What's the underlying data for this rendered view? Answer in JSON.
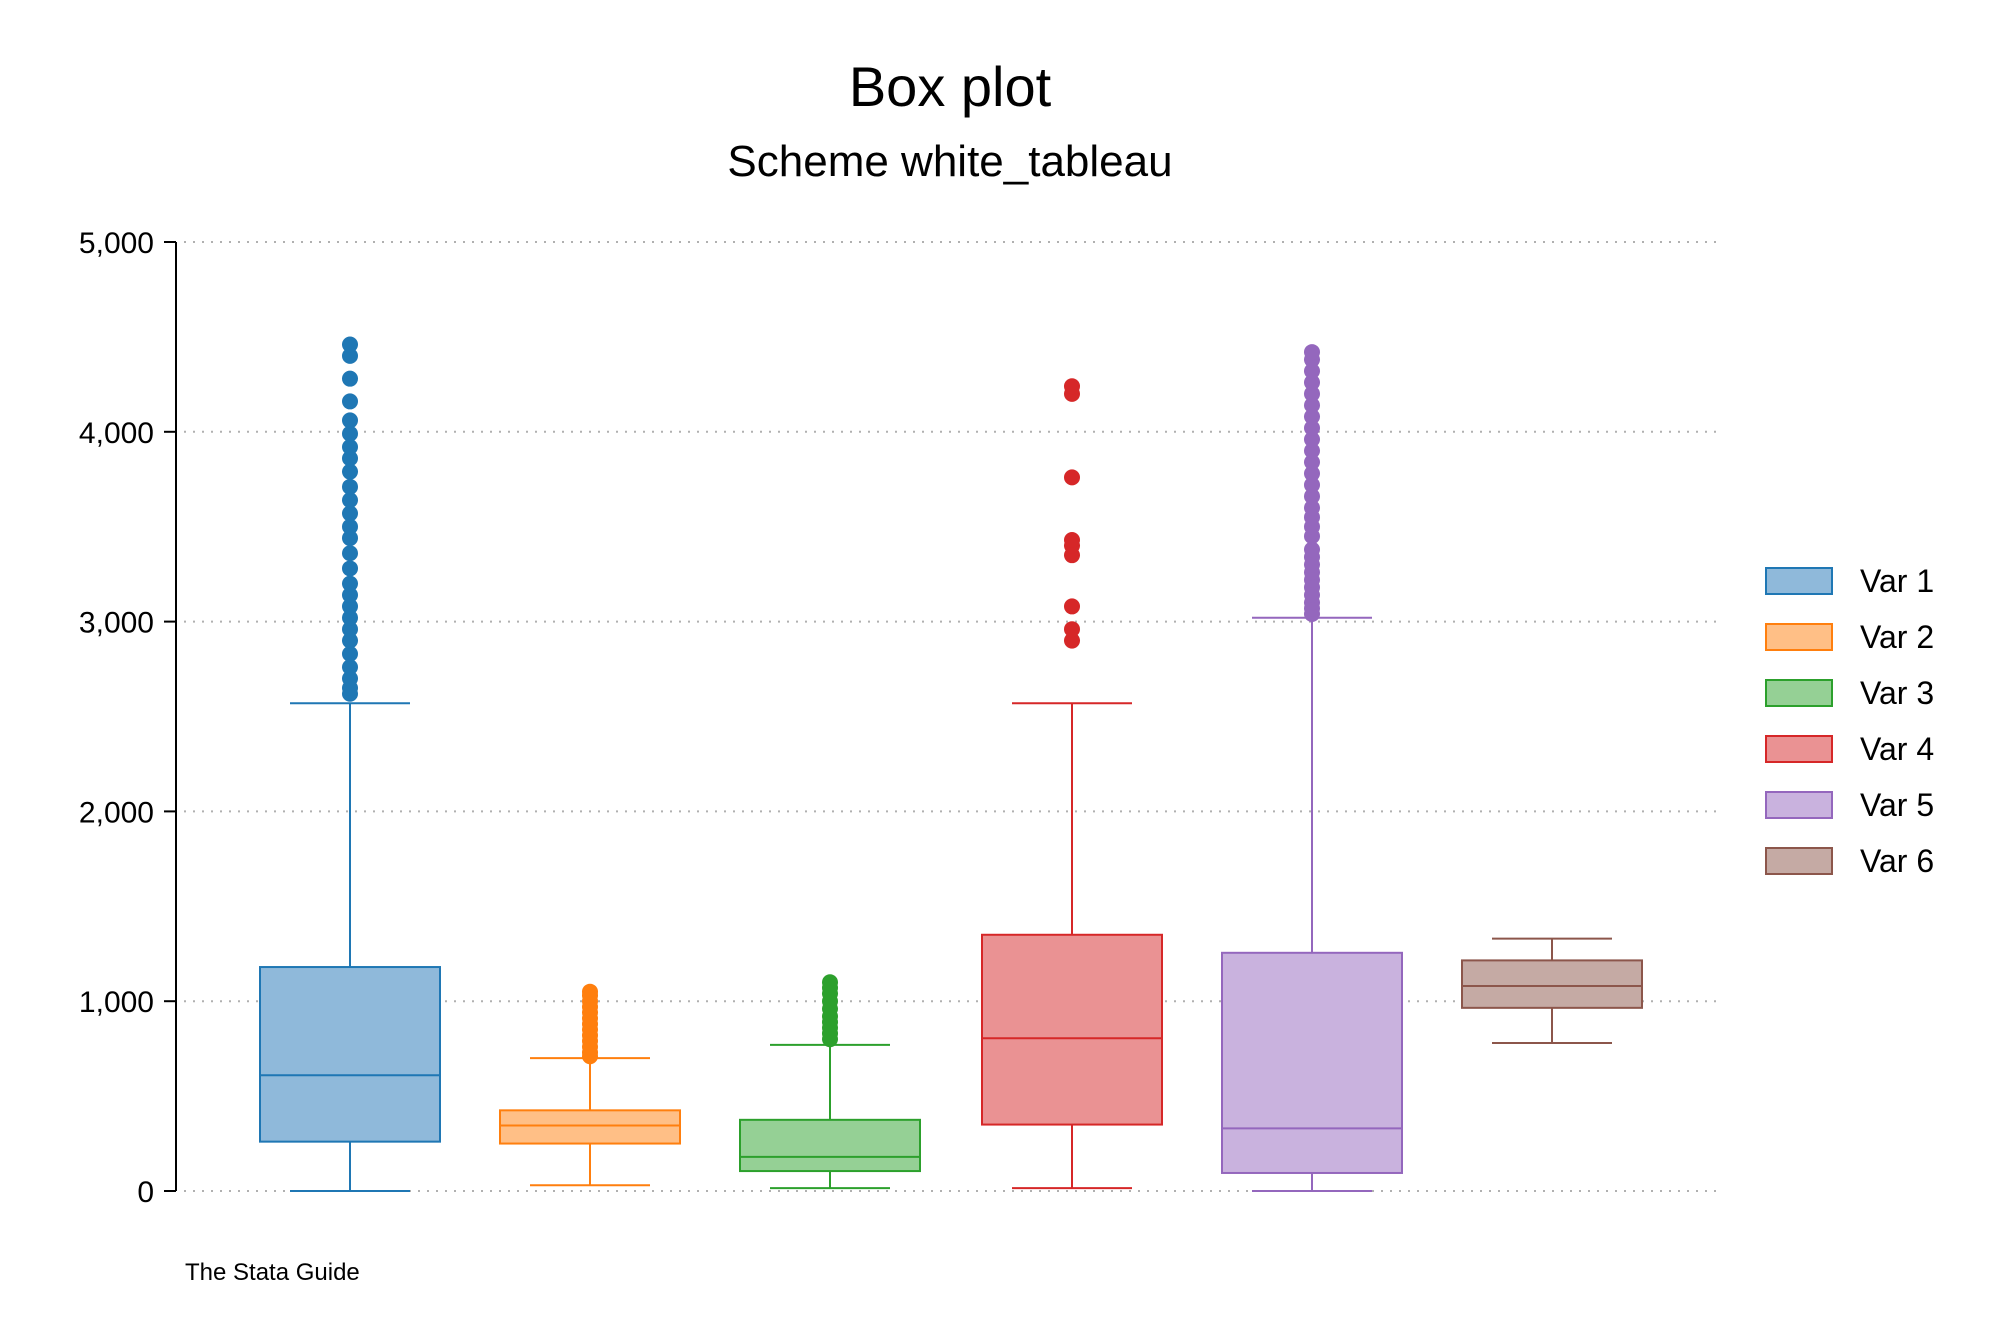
{
  "chart_data": {
    "type": "box",
    "title": "Box plot",
    "subtitle": "Scheme white_tableau",
    "note": "The Stata Guide",
    "ylim": [
      0,
      5000
    ],
    "yticks": [
      0,
      1000,
      2000,
      3000,
      4000,
      5000
    ],
    "ytick_labels": [
      "0",
      "1,000",
      "2,000",
      "3,000",
      "4,000",
      "5,000"
    ],
    "grid": true,
    "legend_position": "right",
    "series": [
      {
        "name": "Var 1",
        "color": "#1f77b4",
        "fill": "#8fb9da",
        "min": 0,
        "q1": 260,
        "median": 610,
        "q3": 1180,
        "max": 2570,
        "outliers": [
          2620,
          2650,
          2700,
          2760,
          2830,
          2900,
          2960,
          3020,
          3080,
          3140,
          3200,
          3280,
          3360,
          3440,
          3500,
          3570,
          3640,
          3710,
          3790,
          3860,
          3920,
          3990,
          4060,
          4160,
          4280,
          4400,
          4460
        ]
      },
      {
        "name": "Var 2",
        "color": "#ff7f0e",
        "fill": "#ffbf86",
        "min": 30,
        "q1": 250,
        "median": 345,
        "q3": 425,
        "max": 700,
        "outliers": [
          710,
          730,
          760,
          790,
          820,
          850,
          880,
          910,
          940,
          970,
          1000,
          1030,
          1050
        ]
      },
      {
        "name": "Var 3",
        "color": "#2ca02c",
        "fill": "#95d095",
        "min": 15,
        "q1": 105,
        "median": 180,
        "q3": 375,
        "max": 770,
        "outliers": [
          800,
          830,
          860,
          890,
          920,
          960,
          1000,
          1040,
          1070,
          1100
        ]
      },
      {
        "name": "Var 4",
        "color": "#d62728",
        "fill": "#ea9293",
        "min": 15,
        "q1": 350,
        "median": 805,
        "q3": 1350,
        "max": 2570,
        "outliers": [
          2900,
          2960,
          3080,
          3350,
          3400,
          3430,
          3760,
          4200,
          4240
        ]
      },
      {
        "name": "Var 5",
        "color": "#9467bd",
        "fill": "#c9b2de",
        "min": 0,
        "q1": 95,
        "median": 330,
        "q3": 1255,
        "max": 3020,
        "outliers": [
          3040,
          3070,
          3100,
          3140,
          3180,
          3220,
          3260,
          3300,
          3340,
          3380,
          3450,
          3500,
          3550,
          3600,
          3660,
          3720,
          3780,
          3840,
          3900,
          3960,
          4020,
          4080,
          4140,
          4200,
          4260,
          4320,
          4380,
          4420
        ]
      },
      {
        "name": "Var 6",
        "color": "#8c564b",
        "fill": "#c5aaa4",
        "min": 780,
        "q1": 965,
        "median": 1080,
        "q3": 1215,
        "max": 1330,
        "outliers": []
      }
    ]
  }
}
